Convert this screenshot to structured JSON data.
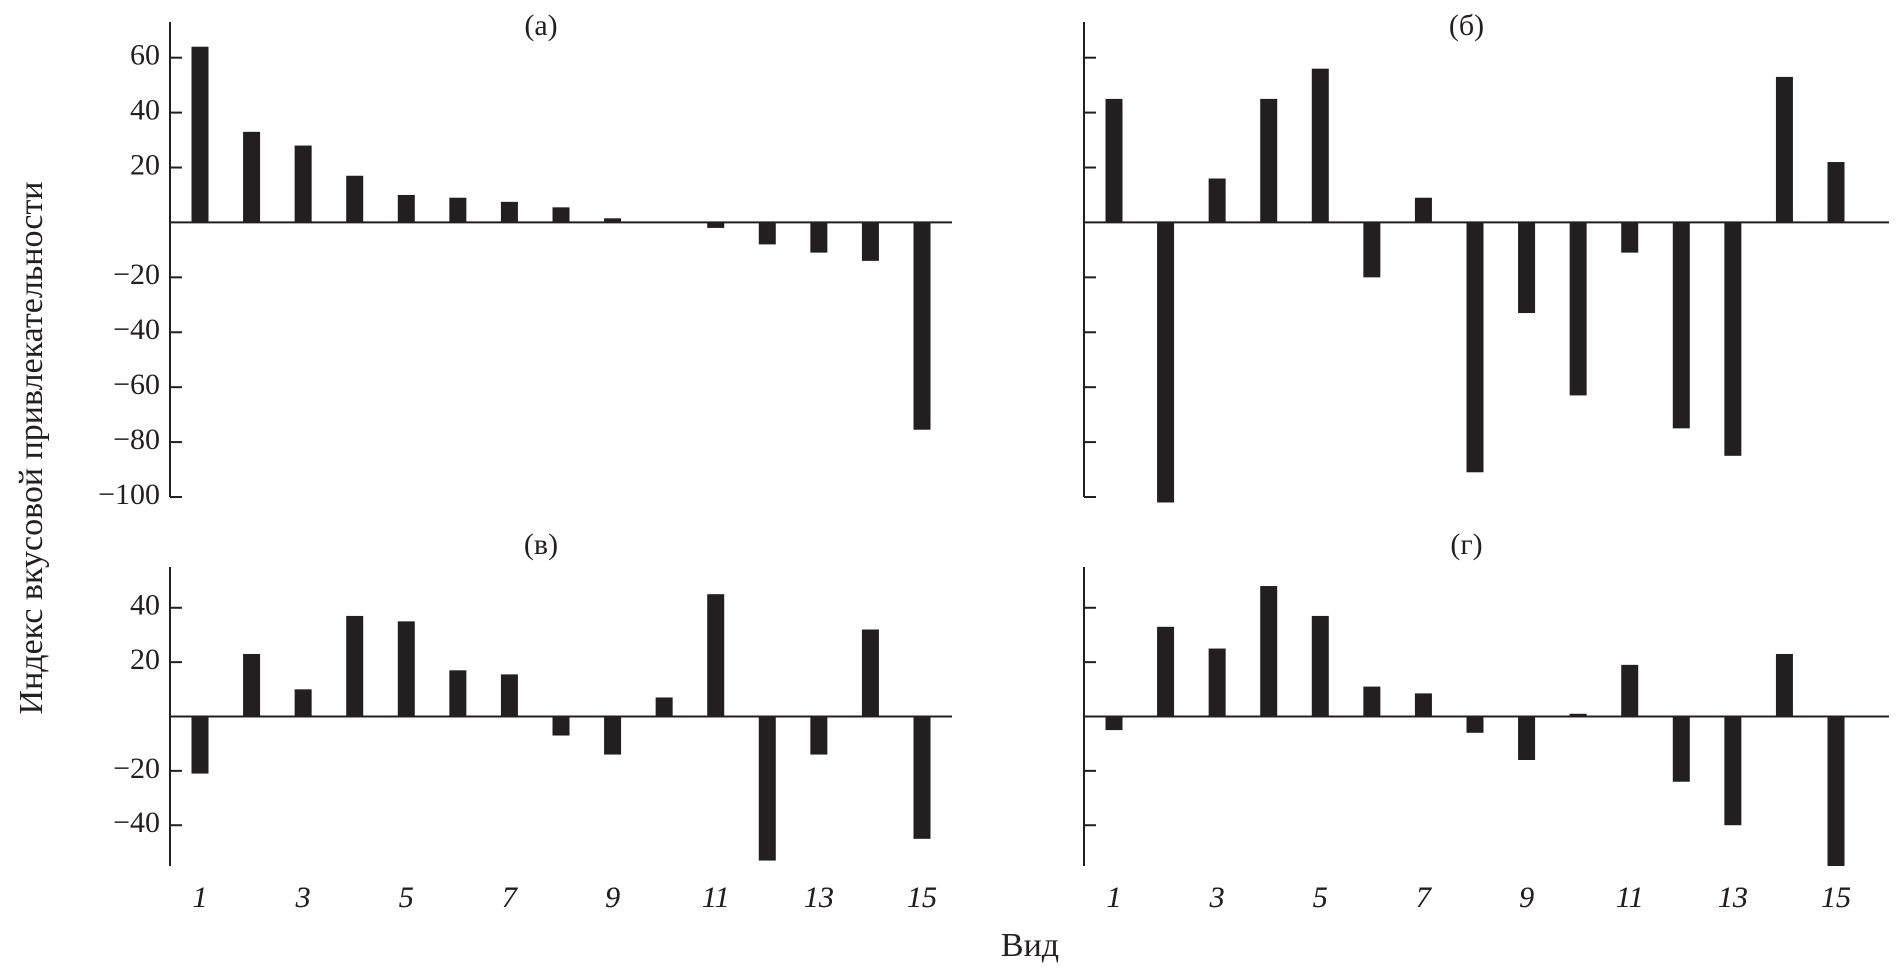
{
  "ylabel": "Индекс вкусовой привлекательности",
  "xlabel": "Вид",
  "chart_data": [
    {
      "type": "bar",
      "title": "(а)",
      "color": "#231f20",
      "categories": [
        "1",
        null,
        "3",
        null,
        "5",
        null,
        "7",
        null,
        "9",
        null,
        "11",
        null,
        "13",
        null,
        "15"
      ],
      "values": [
        64,
        33,
        28,
        17,
        10,
        9,
        7.5,
        5.5,
        1.5,
        0,
        -2,
        -8,
        -11,
        -14,
        -75.5
      ],
      "ylim": [
        -100,
        73
      ],
      "ytick_labels": true,
      "yticks": [
        {
          "value": -100,
          "label": "−100"
        },
        {
          "value": -80,
          "label": "−80"
        },
        {
          "value": -60,
          "label": "−60"
        },
        {
          "value": -40,
          "label": "−40"
        },
        {
          "value": -20,
          "label": "−20"
        },
        20,
        40,
        60
      ]
    },
    {
      "type": "bar",
      "title": "(б)",
      "color": "#231f20",
      "categories": [
        "1",
        null,
        "3",
        null,
        "5",
        null,
        "7",
        null,
        "9",
        null,
        "11",
        null,
        "13",
        null,
        "15"
      ],
      "values": [
        45,
        -102,
        16,
        45,
        56,
        -20,
        9,
        -91,
        -33,
        -63,
        -11,
        -75,
        -85,
        53,
        22
      ],
      "ylim": [
        -100,
        73
      ],
      "ytick_labels": false,
      "yticks": [
        -100,
        -80,
        -60,
        -40,
        -20,
        20,
        40,
        60
      ]
    },
    {
      "type": "bar",
      "title": "(в)",
      "color": "#231f20",
      "categories": [
        "1",
        null,
        "3",
        null,
        "5",
        null,
        "7",
        null,
        "9",
        null,
        "11",
        null,
        "13",
        null,
        "15"
      ],
      "values": [
        -21,
        23,
        10,
        37,
        35,
        17,
        15.5,
        -7,
        -14,
        7,
        45,
        -53,
        -14,
        32,
        -45
      ],
      "ylim": [
        -55,
        55
      ],
      "ytick_labels": true,
      "yticks": [
        {
          "value": -40,
          "label": "−40"
        },
        {
          "value": -20,
          "label": "−20"
        },
        20,
        40
      ]
    },
    {
      "type": "bar",
      "title": "(г)",
      "color": "#231f20",
      "categories": [
        "1",
        null,
        "3",
        null,
        "5",
        null,
        "7",
        null,
        "9",
        null,
        "11",
        null,
        "13",
        null,
        "15"
      ],
      "values": [
        -5,
        33,
        25,
        48,
        37,
        11,
        8.5,
        -6,
        -16,
        1,
        19,
        -24,
        -40,
        23,
        -55
      ],
      "ylim": [
        -55,
        55
      ],
      "ytick_labels": false,
      "yticks": [
        -40,
        -20,
        20,
        40
      ]
    }
  ]
}
